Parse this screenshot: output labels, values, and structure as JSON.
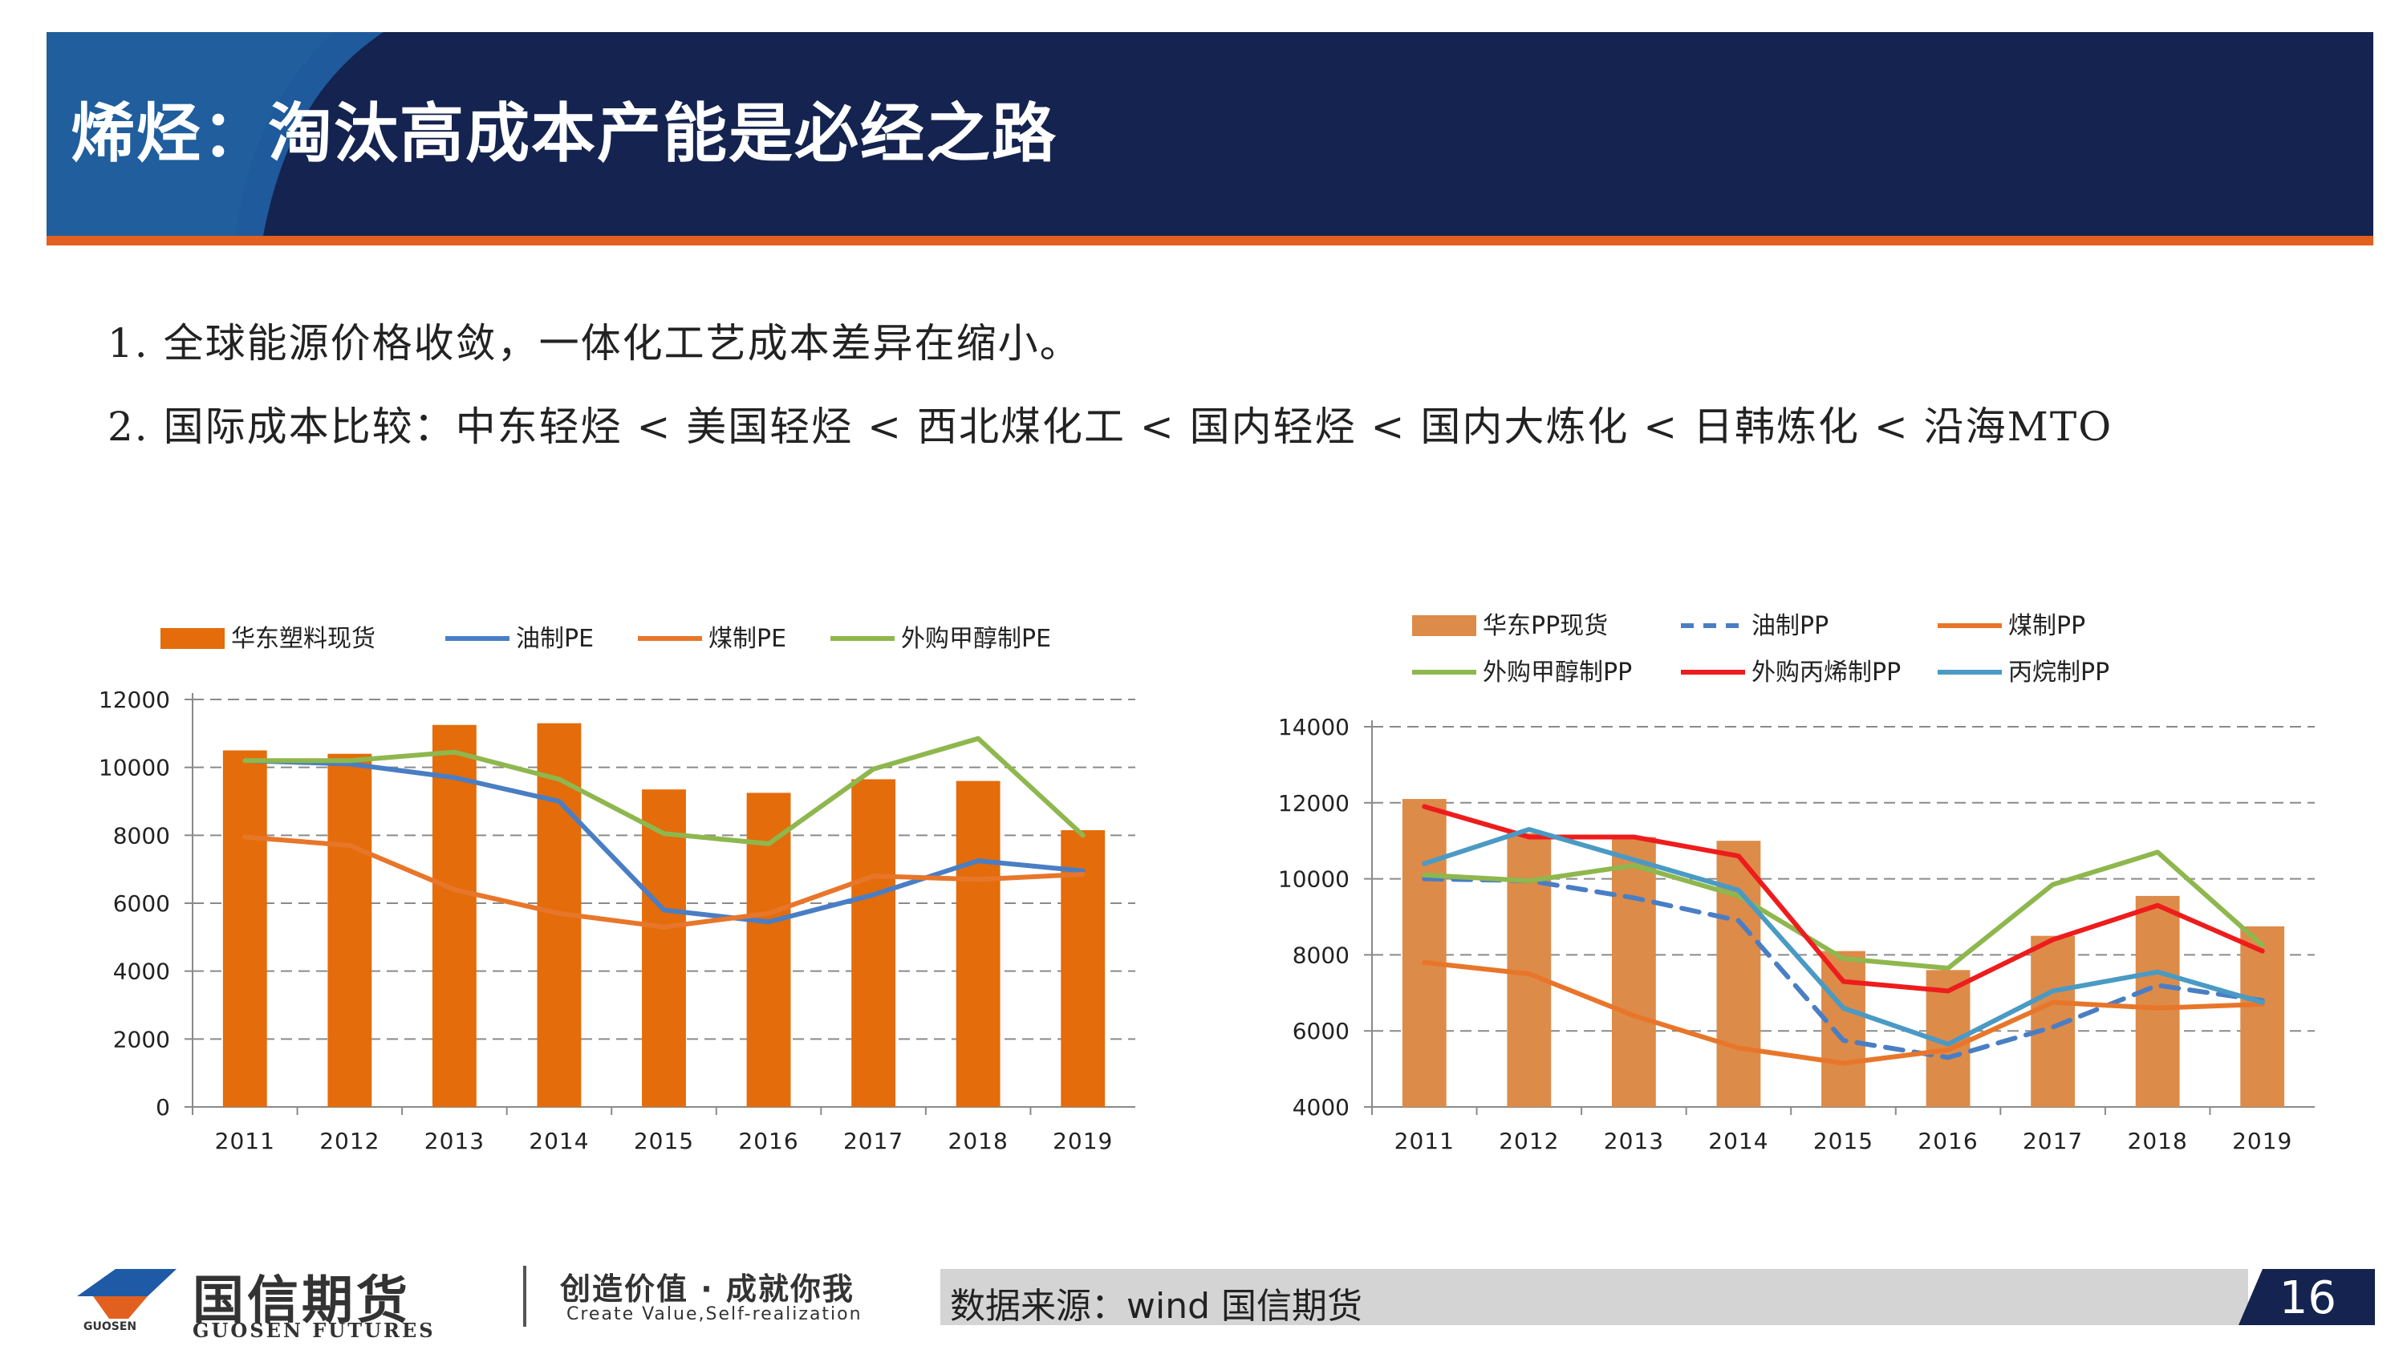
{
  "title": "烯烃：淘汰高成本产能是必经之路",
  "bullets": [
    "1. 全球能源价格收敛，一体化工艺成本差异在缩小。",
    "2. 国际成本比较：中东轻烃 < 美国轻烃 < 西北煤化工 < 国内轻烃 < 国内大炼化 < 日韩炼化 < 沿海MTO"
  ],
  "colors": {
    "title_bg": "#14234f",
    "accent": "#e2601f",
    "bar_left": "#e46c0a",
    "bar_right": "#dd8b49",
    "blue": "#4a7ec4",
    "orange": "#e8762a",
    "green": "#8eb74e",
    "red": "#ee1c1c",
    "steel": "#4a9ac4"
  },
  "chart_data": [
    {
      "type": "bar",
      "title": "",
      "xlabel": "",
      "ylabel": "",
      "categories": [
        "2011",
        "2012",
        "2013",
        "2014",
        "2015",
        "2016",
        "2017",
        "2018",
        "2019"
      ],
      "ylim": [
        0,
        12000
      ],
      "yticks": [
        "0",
        "2000",
        "4000",
        "6000",
        "8000",
        "10000",
        "12000"
      ],
      "grid": true,
      "legend": "top",
      "series": [
        {
          "name": "华东塑料现货",
          "kind": "bar",
          "color": "#e46c0a",
          "values": [
            10500,
            10400,
            11250,
            11300,
            9350,
            9250,
            9650,
            9600,
            8150
          ]
        },
        {
          "name": "油制PE",
          "kind": "line",
          "color": "#4a7ec4",
          "values": [
            10200,
            10100,
            9700,
            9000,
            5800,
            5450,
            6250,
            7250,
            6950
          ]
        },
        {
          "name": "煤制PE",
          "kind": "line",
          "color": "#e8762a",
          "values": [
            7950,
            7700,
            6400,
            5700,
            5300,
            5700,
            6800,
            6700,
            6850
          ]
        },
        {
          "name": "外购甲醇制PE",
          "kind": "line",
          "color": "#8eb74e",
          "values": [
            10200,
            10200,
            10450,
            9650,
            8050,
            7750,
            9950,
            10850,
            8000
          ]
        }
      ]
    },
    {
      "type": "bar",
      "title": "",
      "xlabel": "",
      "ylabel": "",
      "categories": [
        "2011",
        "2012",
        "2013",
        "2014",
        "2015",
        "2016",
        "2017",
        "2018",
        "2019"
      ],
      "ylim": [
        4000,
        14000
      ],
      "yticks": [
        "4000",
        "6000",
        "8000",
        "10000",
        "12000",
        "14000"
      ],
      "grid": true,
      "legend": "top",
      "series": [
        {
          "name": "华东PP现货",
          "kind": "bar",
          "color": "#dd8b49",
          "values": [
            12100,
            11200,
            11100,
            11000,
            8100,
            7600,
            8500,
            9550,
            8750
          ]
        },
        {
          "name": "油制PP",
          "kind": "dashed",
          "color": "#4a7ec4",
          "values": [
            10000,
            9950,
            9500,
            8900,
            5750,
            5300,
            6100,
            7200,
            6800
          ]
        },
        {
          "name": "煤制PP",
          "kind": "line",
          "color": "#e8762a",
          "values": [
            7800,
            7500,
            6400,
            5550,
            5150,
            5500,
            6750,
            6600,
            6700
          ]
        },
        {
          "name": "外购甲醇制PP",
          "kind": "line",
          "color": "#8eb74e",
          "values": [
            10100,
            9950,
            10350,
            9550,
            7900,
            7650,
            9850,
            10700,
            8250
          ]
        },
        {
          "name": "外购丙烯制PP",
          "kind": "line",
          "color": "#ee1c1c",
          "values": [
            11900,
            11100,
            11100,
            10600,
            7300,
            7050,
            8400,
            9300,
            8100
          ]
        },
        {
          "name": "丙烷制PP",
          "kind": "line",
          "color": "#4a9ac4",
          "values": [
            10400,
            11300,
            10500,
            9700,
            6600,
            5650,
            7050,
            7550,
            6750
          ]
        }
      ]
    }
  ],
  "footer": {
    "logo_cn": "国信期货",
    "logo_en": "GUOSEN FUTURES",
    "logo_mini": "GUOSEN",
    "slogan_cn": "创造价值 · 成就你我",
    "slogan_en": "Create Value,Self-realization",
    "source": "数据来源：wind  国信期货",
    "page_number": "16"
  }
}
